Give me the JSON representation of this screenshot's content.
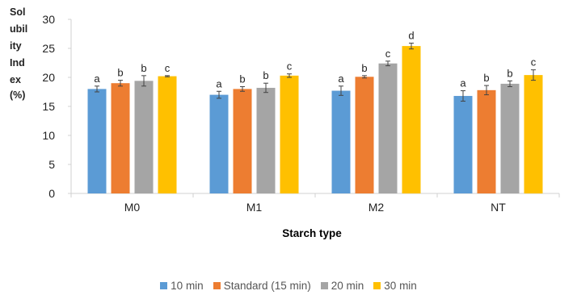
{
  "chart_data": {
    "type": "bar",
    "title": "",
    "xlabel": "Starch type",
    "ylabel_lines": [
      "Sol",
      "ubil",
      "ity",
      "Ind",
      "ex",
      "(%)"
    ],
    "ylim": [
      0,
      30
    ],
    "yticks": [
      0,
      5,
      10,
      15,
      20,
      25,
      30
    ],
    "grid": false,
    "legend_position": "bottom",
    "categories": [
      "M0",
      "M1",
      "M2",
      "NT"
    ],
    "series": [
      {
        "name": "10 min",
        "color": "#5B9BD5",
        "values": [
          18.0,
          17.0,
          17.7,
          16.8
        ],
        "errors": [
          0.5,
          0.6,
          0.8,
          0.9
        ],
        "letters": [
          "a",
          "a",
          "a",
          "a"
        ]
      },
      {
        "name": "Standard (15 min)",
        "color": "#ED7D31",
        "values": [
          19.0,
          18.0,
          20.1,
          17.8
        ],
        "errors": [
          0.5,
          0.4,
          0.2,
          0.8
        ],
        "letters": [
          "b",
          "b",
          "b",
          "b"
        ]
      },
      {
        "name": "20 min",
        "color": "#A5A5A5",
        "values": [
          19.4,
          18.2,
          22.4,
          18.9
        ],
        "errors": [
          0.9,
          0.8,
          0.4,
          0.5
        ],
        "letters": [
          "b",
          "b",
          "c",
          "b"
        ]
      },
      {
        "name": "30 min",
        "color": "#FFC000",
        "values": [
          20.2,
          20.3,
          25.4,
          20.4
        ],
        "errors": [
          0.1,
          0.3,
          0.5,
          0.9
        ],
        "letters": [
          "c",
          "c",
          "d",
          "c"
        ]
      }
    ]
  }
}
